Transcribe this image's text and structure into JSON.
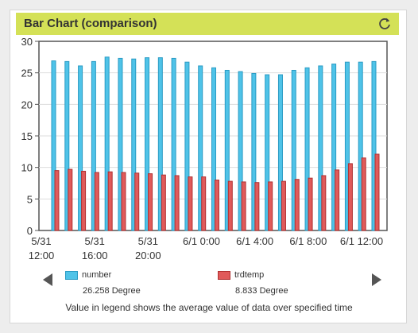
{
  "header": {
    "title": "Bar Chart (comparison)",
    "refresh_icon": "refresh-icon"
  },
  "legend": {
    "items": [
      {
        "name": "number",
        "value": "26.258 Degree",
        "color": "#4fc3e8",
        "border": "#2a9bc4"
      },
      {
        "name": "trdtemp",
        "value": "8.833 Degree",
        "color": "#e05a5a",
        "border": "#b03030"
      }
    ],
    "prev_icon": "triangle-left-icon",
    "next_icon": "triangle-right-icon"
  },
  "footnote": "Value in legend shows the average value of data over specified time",
  "chart_data": {
    "type": "bar",
    "ylim": [
      0,
      30
    ],
    "yticks": [
      "0",
      "5",
      "10",
      "15",
      "20",
      "25",
      "30"
    ],
    "xticks": [
      [
        "5/31",
        "12:00"
      ],
      [
        "5/31",
        "16:00"
      ],
      [
        "5/31",
        "20:00"
      ],
      [
        "6/1 0:00",
        ""
      ],
      [
        "6/1 4:00",
        ""
      ],
      [
        "6/1 8:00",
        ""
      ],
      [
        "6/1 12:00",
        ""
      ]
    ],
    "series": [
      {
        "name": "number",
        "values": [
          26.9,
          26.8,
          26.1,
          26.8,
          27.5,
          27.3,
          27.2,
          27.4,
          27.4,
          27.3,
          26.7,
          26.1,
          25.8,
          25.4,
          25.2,
          24.9,
          24.7,
          24.7,
          25.4,
          25.8,
          26.1,
          26.4,
          26.7,
          26.7,
          26.8
        ]
      },
      {
        "name": "trdtemp",
        "values": [
          9.5,
          9.7,
          9.4,
          9.2,
          9.3,
          9.2,
          9.1,
          9.0,
          8.8,
          8.7,
          8.5,
          8.5,
          8.0,
          7.8,
          7.7,
          7.6,
          7.7,
          7.8,
          8.1,
          8.3,
          8.7,
          9.6,
          10.6,
          11.5,
          12.1
        ]
      }
    ]
  }
}
